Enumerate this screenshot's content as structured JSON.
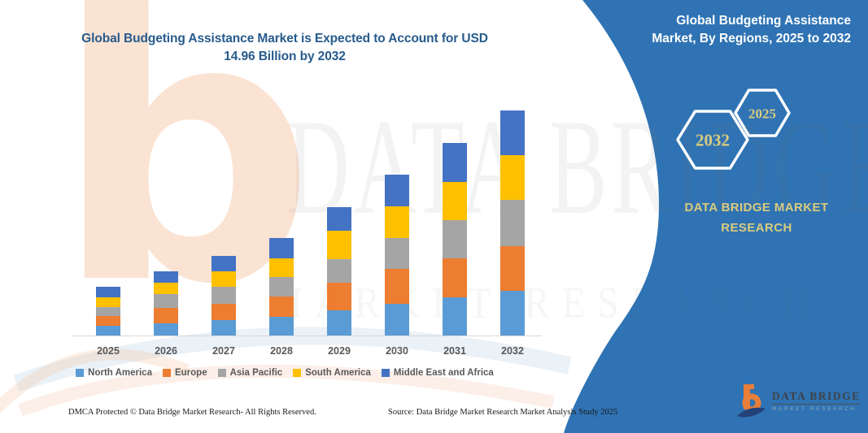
{
  "title": {
    "line1": "Global Budgeting Assistance Market is Expected to Account for USD",
    "line2": "14.96 Billion by 2032"
  },
  "panel": {
    "heading_line1": "Global Budgeting Assistance",
    "heading_line2": "Market, By Regions, 2025 to 2032",
    "hexagons": [
      {
        "label": "2032"
      },
      {
        "label": "2025"
      }
    ],
    "brand_line1": "DATA BRIDGE MARKET",
    "brand_line2": "RESEARCH",
    "background_color": "#2f73b4",
    "accent_text_color": "#d9cb7e"
  },
  "watermark": {
    "primary": "DATA BRIDGE",
    "secondary": "MARKET RESEARCH",
    "logo_letter": "b"
  },
  "logo": {
    "name": "DATA BRIDGE",
    "tagline": "MARKET RESEARCH"
  },
  "footer": {
    "dmca": "DMCA Protected © Data Bridge Market Research-  All Rights Reserved.",
    "source": "Source: Data Bridge Market Research  Market Analysis Study 2025"
  },
  "chart_data": {
    "type": "bar",
    "stacked": true,
    "title": "Global Budgeting Assistance Market, By Regions, 2025 to 2032",
    "headline": "Global Budgeting Assistance Market is Expected to Account for USD 14.96 Billion by 2032",
    "unit": "USD Billion",
    "values_estimated_from_pixels": true,
    "y_axis_visible": false,
    "grid": false,
    "legend_position": "bottom",
    "categories": [
      "2025",
      "2026",
      "2027",
      "2028",
      "2029",
      "2030",
      "2031",
      "2032"
    ],
    "series": [
      {
        "name": "North America",
        "color": "#5b9bd5",
        "values": [
          0.65,
          0.81,
          1.03,
          1.24,
          1.67,
          2.11,
          2.54,
          2.97
        ]
      },
      {
        "name": "Europe",
        "color": "#ed7d31",
        "values": [
          0.65,
          1.03,
          1.08,
          1.35,
          1.84,
          2.32,
          2.59,
          2.97
        ]
      },
      {
        "name": "Asia Pacific",
        "color": "#a5a5a5",
        "values": [
          0.59,
          0.92,
          1.13,
          1.3,
          1.57,
          2.05,
          2.54,
          3.08
        ]
      },
      {
        "name": "South America",
        "color": "#ffc000",
        "values": [
          0.65,
          0.76,
          1.03,
          1.24,
          1.89,
          2.11,
          2.54,
          2.97
        ]
      },
      {
        "name": "Middle East and Africa",
        "color": "#4472c4",
        "values": [
          0.7,
          0.76,
          1.03,
          1.35,
          1.57,
          2.11,
          2.59,
          2.97
        ]
      }
    ],
    "totals": [
      3.24,
      4.28,
      5.3,
      6.48,
      8.54,
      10.7,
      12.8,
      14.96
    ],
    "final_year_total_usd_billion": 14.96
  }
}
